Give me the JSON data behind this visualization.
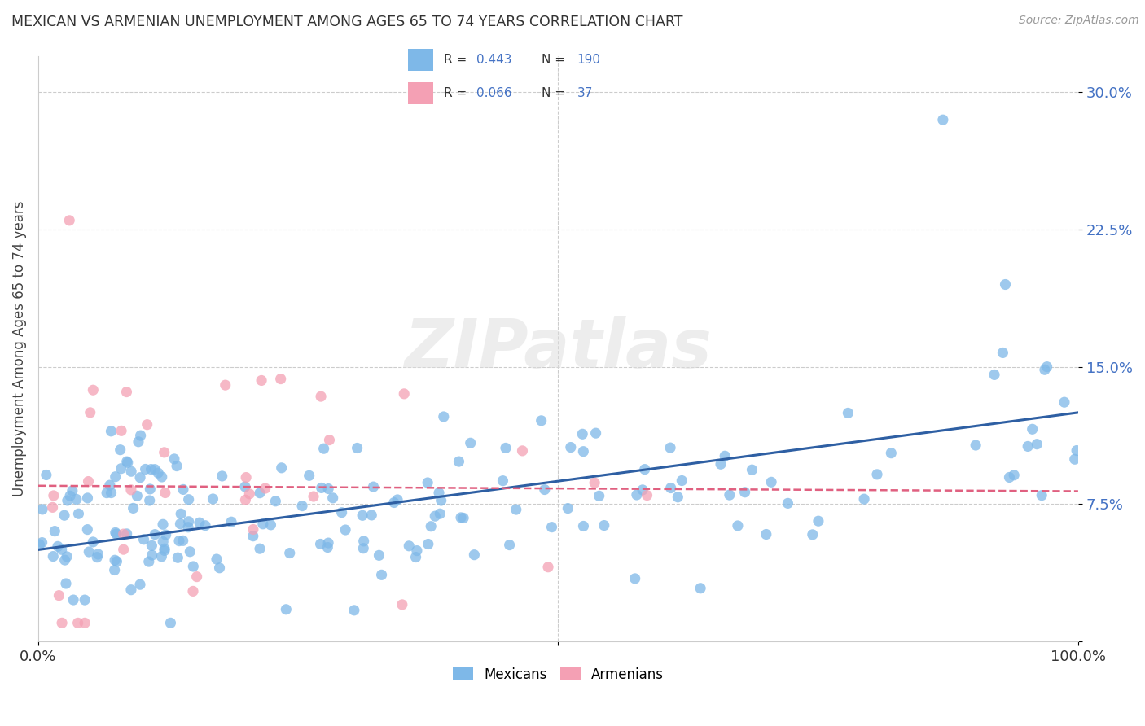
{
  "title": "MEXICAN VS ARMENIAN UNEMPLOYMENT AMONG AGES 65 TO 74 YEARS CORRELATION CHART",
  "source": "Source: ZipAtlas.com",
  "xlabel": "",
  "ylabel": "Unemployment Among Ages 65 to 74 years",
  "xlim": [
    0,
    100
  ],
  "ylim": [
    0,
    32
  ],
  "yticks": [
    0,
    7.5,
    15.0,
    22.5,
    30.0
  ],
  "mexican_R": 0.443,
  "mexican_N": 190,
  "armenian_R": 0.066,
  "armenian_N": 37,
  "mexican_color": "#7EB8E8",
  "armenian_color": "#F4A0B4",
  "mexican_line_color": "#2E5FA3",
  "armenian_line_color": "#E06080",
  "legend_label_mexican": "Mexicans",
  "legend_label_armenian": "Armenians",
  "background_color": "#FFFFFF",
  "grid_color": "#CCCCCC",
  "watermark": "ZIPatlas",
  "mex_trend_x0": 0,
  "mex_trend_y0": 5.0,
  "mex_trend_x1": 100,
  "mex_trend_y1": 12.5,
  "arm_trend_x0": 0,
  "arm_trend_y0": 8.5,
  "arm_trend_x1": 100,
  "arm_trend_y1": 8.2
}
